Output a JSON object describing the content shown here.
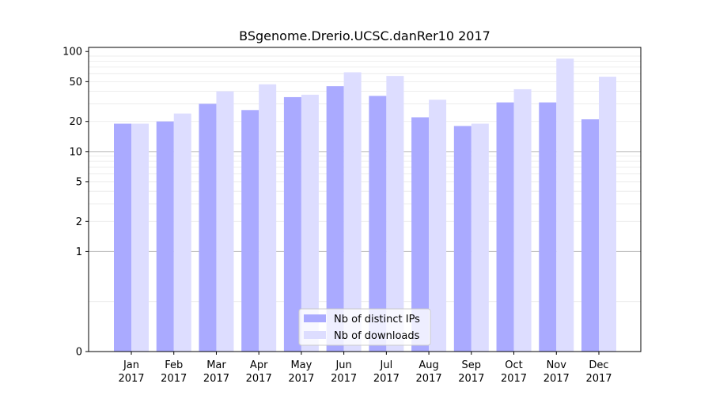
{
  "chart_data": {
    "type": "bar",
    "title": "BSgenome.Drerio.UCSC.danRer10 2017",
    "xlabel": "",
    "ylabel": "",
    "y_scale": "symlog",
    "ylim": [
      0,
      110
    ],
    "y_ticks": [
      0,
      1,
      2,
      5,
      10,
      20,
      50,
      100
    ],
    "categories": [
      [
        "Jan",
        "2017"
      ],
      [
        "Feb",
        "2017"
      ],
      [
        "Mar",
        "2017"
      ],
      [
        "Apr",
        "2017"
      ],
      [
        "May",
        "2017"
      ],
      [
        "Jun",
        "2017"
      ],
      [
        "Jul",
        "2017"
      ],
      [
        "Aug",
        "2017"
      ],
      [
        "Sep",
        "2017"
      ],
      [
        "Oct",
        "2017"
      ],
      [
        "Nov",
        "2017"
      ],
      [
        "Dec",
        "2017"
      ]
    ],
    "series": [
      {
        "name": "Nb of distinct IPs",
        "color": "#aaaaff",
        "values": [
          19,
          20,
          30,
          26,
          35,
          45,
          36,
          22,
          18,
          31,
          31,
          21
        ]
      },
      {
        "name": "Nb of downloads",
        "color": "#ddddff",
        "values": [
          19,
          24,
          40,
          47,
          37,
          62,
          57,
          33,
          19,
          42,
          85,
          56
        ]
      }
    ],
    "grid": true,
    "legend_position": "bottom-center"
  }
}
